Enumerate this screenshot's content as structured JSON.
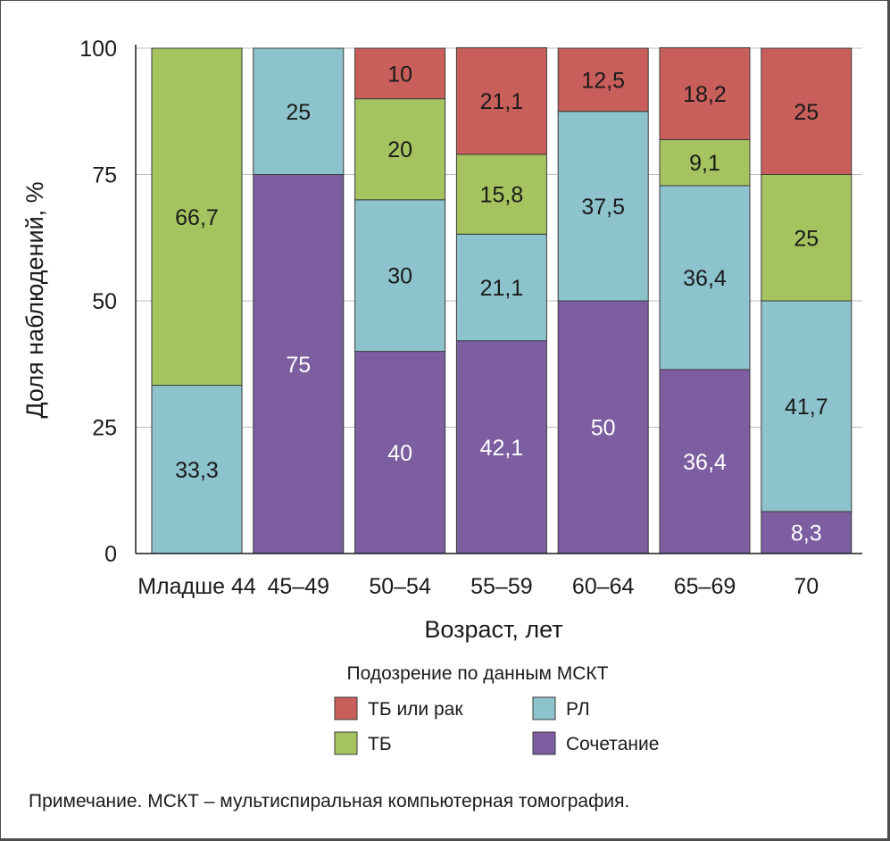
{
  "chart_data": {
    "type": "bar",
    "stacked": true,
    "orientation": "vertical",
    "categories": [
      "Младше 44",
      "45–49",
      "50–54",
      "55–59",
      "60–64",
      "65–69",
      "70"
    ],
    "series": [
      {
        "name": "Сочетание",
        "color": "#7c5ea1",
        "label_color": "#ffffff",
        "values": [
          0,
          75,
          40,
          42.1,
          50,
          36.4,
          8.3
        ]
      },
      {
        "name": "РЛ",
        "color": "#8dc3cd",
        "label_color": "#1a1a1a",
        "values": [
          33.3,
          25,
          30,
          21.1,
          37.5,
          36.4,
          41.7
        ]
      },
      {
        "name": "ТБ",
        "color": "#a5c460",
        "label_color": "#1a1a1a",
        "values": [
          66.7,
          0,
          20,
          15.8,
          0,
          9.1,
          25
        ]
      },
      {
        "name": "ТБ или рак",
        "color": "#c95f5b",
        "label_color": "#1a1a1a",
        "values": [
          0,
          0,
          10,
          21.1,
          12.5,
          18.2,
          25
        ]
      }
    ],
    "value_labels": [
      [
        "",
        "75",
        "40",
        "42,1",
        "50",
        "36,4",
        "8,3"
      ],
      [
        "33,3",
        "25",
        "30",
        "21,1",
        "37,5",
        "36,4",
        "41,7"
      ],
      [
        "66,7",
        "",
        "20",
        "15,8",
        "",
        "9,1",
        "25"
      ],
      [
        "",
        "",
        "10",
        "21,1",
        "12,5",
        "18,2",
        "25"
      ]
    ],
    "xlabel": "Возраст, лет",
    "ylabel": "Доля наблюдений, %",
    "ylim": [
      0,
      100
    ],
    "yticks": [
      "0",
      "25",
      "50",
      "75",
      "100"
    ],
    "grid": true,
    "legend": {
      "title": "Подозрение по данным МСКТ",
      "placement": "bottom-center",
      "entries": [
        "ТБ или рак",
        "РЛ",
        "ТБ",
        "Сочетание"
      ]
    }
  },
  "note": "Примечание. МСКТ – мультиспиральная компьютерная томография."
}
